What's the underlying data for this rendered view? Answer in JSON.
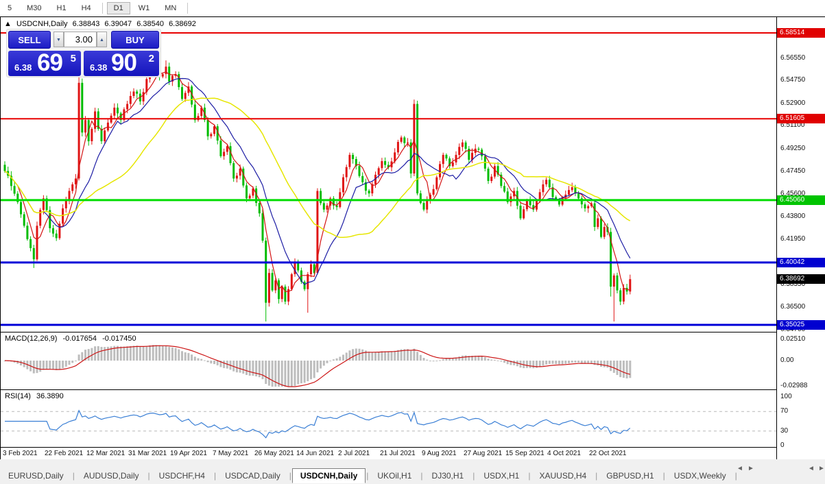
{
  "toolbar": {
    "items": [
      {
        "label": "5",
        "active": false
      },
      {
        "label": "M30",
        "active": false
      },
      {
        "label": "H1",
        "active": false
      },
      {
        "label": "H4",
        "active": false
      },
      {
        "label": "D1",
        "active": true
      },
      {
        "label": "W1",
        "active": false
      },
      {
        "label": "MN",
        "active": false
      }
    ]
  },
  "chart": {
    "collapse_icon": "▲",
    "symbol": "USDCNH,Daily",
    "open": "6.38843",
    "high": "6.39047",
    "low": "6.38540",
    "close": "6.38692"
  },
  "trade_panel": {
    "sell_label": "SELL",
    "buy_label": "BUY",
    "volume": "3.00",
    "spin_down_icon": "▼",
    "spin_up_icon": "▲",
    "bid": {
      "small": "6.38",
      "big": "69",
      "sup": "5"
    },
    "ask": {
      "small": "6.38",
      "big": "90",
      "sup": "2"
    }
  },
  "price_axis": {
    "ticks": [
      {
        "text": "6.56550",
        "value": 6.5655
      },
      {
        "text": "6.54750",
        "value": 6.5475
      },
      {
        "text": "6.52900",
        "value": 6.529
      },
      {
        "text": "6.51100",
        "value": 6.511
      },
      {
        "text": "6.49250",
        "value": 6.4925
      },
      {
        "text": "6.47450",
        "value": 6.4745
      },
      {
        "text": "6.45600",
        "value": 6.456
      },
      {
        "text": "6.43800",
        "value": 6.438
      },
      {
        "text": "6.41950",
        "value": 6.4195
      },
      {
        "text": "6.38350",
        "value": 6.3835
      },
      {
        "text": "6.36500",
        "value": 6.365
      },
      {
        "text": "6.34700",
        "value": 6.347
      }
    ],
    "tags": [
      {
        "text": "6.58514",
        "value": 6.58514,
        "bg": "#e00000"
      },
      {
        "text": "6.51605",
        "value": 6.51605,
        "bg": "#e00000"
      },
      {
        "text": "6.45060",
        "value": 6.4506,
        "bg": "#00c400"
      },
      {
        "text": "6.40042",
        "value": 6.40042,
        "bg": "#0000d0"
      },
      {
        "text": "6.38692",
        "value": 6.38692,
        "bg": "#000000"
      },
      {
        "text": "6.35025",
        "value": 6.35025,
        "bg": "#0000d0"
      }
    ]
  },
  "hlines": [
    {
      "value": 6.58514,
      "color": "#e80000",
      "width": 2
    },
    {
      "value": 6.51605,
      "color": "#e80000",
      "width": 2
    },
    {
      "value": 6.4506,
      "color": "#00dc00",
      "width": 3
    },
    {
      "value": 6.40042,
      "color": "#0000d8",
      "width": 3
    },
    {
      "value": 6.35025,
      "color": "#0000d8",
      "width": 3
    }
  ],
  "indicators": {
    "macd": {
      "label": "MACD(12,26,9)",
      "main_value": "-0.017654",
      "signal_value": "-0.017450",
      "ticks": [
        {
          "text": "0.02510",
          "value": 0.0251
        },
        {
          "text": "0.00",
          "value": 0
        },
        {
          "text": "-0.02988",
          "value": -0.02988
        }
      ]
    },
    "rsi": {
      "label": "RSI(14)",
      "value": "36.3890",
      "ticks": [
        {
          "text": "100",
          "value": 100
        },
        {
          "text": "70",
          "value": 70
        },
        {
          "text": "30",
          "value": 30
        },
        {
          "text": "0",
          "value": 0
        }
      ],
      "levels": [
        70,
        30
      ]
    }
  },
  "date_axis": [
    "3 Feb 2021",
    "22 Feb 2021",
    "12 Mar 2021",
    "31 Mar 2021",
    "19 Apr 2021",
    "7 May 2021",
    "26 May 2021",
    "14 Jun 2021",
    "2 Jul 2021",
    "21 Jul 2021",
    "9 Aug 2021",
    "27 Aug 2021",
    "15 Sep 2021",
    "4 Oct 2021",
    "22 Oct 2021"
  ],
  "tabs": {
    "items": [
      {
        "label": "EURUSD,Daily",
        "active": false
      },
      {
        "label": "AUDUSD,Daily",
        "active": false
      },
      {
        "label": "USDCHF,H4",
        "active": false
      },
      {
        "label": "USDCAD,Daily",
        "active": false
      },
      {
        "label": "USDCNH,Daily",
        "active": true
      },
      {
        "label": "UKOil,H1",
        "active": false
      },
      {
        "label": "DJ30,H1",
        "active": false
      },
      {
        "label": "USDX,H1",
        "active": false
      },
      {
        "label": "XAUUSD,H4",
        "active": false
      },
      {
        "label": "GBPUSD,H1",
        "active": false
      },
      {
        "label": "USDX,Weekly",
        "active": false
      }
    ],
    "scroll_left_icon": "◄",
    "scroll_right_icon": "►"
  },
  "colors": {
    "candle_up": "#e01414",
    "candle_down": "#00bc00",
    "ma_fast": "#d41414",
    "ma_mid": "#1c1ca4",
    "ma_slow": "#e6e600",
    "macd_bar": "#bdbdbd",
    "macd_signal": "#cc1414",
    "rsi_line": "#3a7fd5",
    "panel_blue": "#1c1cc4"
  },
  "chart_data": {
    "type": "candlestick",
    "symbol": "USDCNH",
    "timeframe": "Daily",
    "convention": "red-up-green-down",
    "price_axis_range": [
      6.347,
      6.58514
    ],
    "macd_axis_range": [
      -0.02988,
      0.0251
    ],
    "rsi_axis_range": [
      0,
      100
    ],
    "num_days": 195,
    "ma_periods": {
      "red": 5,
      "blue": 13,
      "yellow": 34
    },
    "macd_params": [
      12,
      26,
      9
    ],
    "rsi_period": 14,
    "close_anchors": [
      [
        0,
        6.474
      ],
      [
        2,
        6.462
      ],
      [
        4,
        6.449
      ],
      [
        6,
        6.43
      ],
      [
        8,
        6.412
      ],
      [
        9,
        6.403
      ],
      [
        10,
        6.43
      ],
      [
        12,
        6.452
      ],
      [
        14,
        6.428
      ],
      [
        16,
        6.42
      ],
      [
        18,
        6.444
      ],
      [
        20,
        6.458
      ],
      [
        22,
        6.468
      ],
      [
        23,
        6.545
      ],
      [
        24,
        6.505
      ],
      [
        25,
        6.515
      ],
      [
        26,
        6.498
      ],
      [
        27,
        6.508
      ],
      [
        28,
        6.522
      ],
      [
        29,
        6.508
      ],
      [
        30,
        6.498
      ],
      [
        32,
        6.513
      ],
      [
        34,
        6.525
      ],
      [
        36,
        6.515
      ],
      [
        38,
        6.528
      ],
      [
        40,
        6.538
      ],
      [
        42,
        6.53
      ],
      [
        44,
        6.548
      ],
      [
        46,
        6.556
      ],
      [
        48,
        6.55
      ],
      [
        50,
        6.558
      ],
      [
        51,
        6.546
      ],
      [
        53,
        6.552
      ],
      [
        55,
        6.532
      ],
      [
        57,
        6.542
      ],
      [
        59,
        6.515
      ],
      [
        61,
        6.525
      ],
      [
        63,
        6.502
      ],
      [
        65,
        6.51
      ],
      [
        67,
        6.486
      ],
      [
        69,
        6.494
      ],
      [
        71,
        6.468
      ],
      [
        73,
        6.476
      ],
      [
        75,
        6.452
      ],
      [
        77,
        6.46
      ],
      [
        79,
        6.44
      ],
      [
        80,
        6.418
      ],
      [
        81,
        6.368
      ],
      [
        82,
        6.392
      ],
      [
        83,
        6.378
      ],
      [
        84,
        6.386
      ],
      [
        85,
        6.371
      ],
      [
        86,
        6.381
      ],
      [
        87,
        6.369
      ],
      [
        88,
        6.379
      ],
      [
        89,
        6.391
      ],
      [
        90,
        6.401
      ],
      [
        91,
        6.394
      ],
      [
        92,
        6.385
      ],
      [
        93,
        6.379
      ],
      [
        94,
        6.391
      ],
      [
        95,
        6.399
      ],
      [
        96,
        6.392
      ],
      [
        97,
        6.458
      ],
      [
        99,
        6.443
      ],
      [
        101,
        6.452
      ],
      [
        103,
        6.445
      ],
      [
        105,
        6.469
      ],
      [
        107,
        6.487
      ],
      [
        109,
        6.478
      ],
      [
        111,
        6.465
      ],
      [
        113,
        6.456
      ],
      [
        115,
        6.471
      ],
      [
        117,
        6.482
      ],
      [
        119,
        6.477
      ],
      [
        121,
        6.489
      ],
      [
        123,
        6.501
      ],
      [
        125,
        6.497
      ],
      [
        126,
        6.472
      ],
      [
        127,
        6.528
      ],
      [
        128,
        6.456
      ],
      [
        130,
        6.443
      ],
      [
        132,
        6.455
      ],
      [
        134,
        6.469
      ],
      [
        136,
        6.487
      ],
      [
        138,
        6.478
      ],
      [
        140,
        6.487
      ],
      [
        142,
        6.497
      ],
      [
        144,
        6.483
      ],
      [
        146,
        6.492
      ],
      [
        148,
        6.486
      ],
      [
        150,
        6.466
      ],
      [
        152,
        6.478
      ],
      [
        154,
        6.462
      ],
      [
        156,
        6.449
      ],
      [
        158,
        6.458
      ],
      [
        160,
        6.436
      ],
      [
        162,
        6.45
      ],
      [
        164,
        6.443
      ],
      [
        166,
        6.457
      ],
      [
        168,
        6.467
      ],
      [
        170,
        6.453
      ],
      [
        172,
        6.447
      ],
      [
        174,
        6.455
      ],
      [
        176,
        6.461
      ],
      [
        178,
        6.452
      ],
      [
        180,
        6.444
      ],
      [
        182,
        6.448
      ],
      [
        183,
        6.429
      ],
      [
        184,
        6.436
      ],
      [
        185,
        6.421
      ],
      [
        186,
        6.429
      ],
      [
        187,
        6.425
      ],
      [
        188,
        6.381
      ],
      [
        189,
        6.39
      ],
      [
        190,
        6.378
      ],
      [
        191,
        6.369
      ],
      [
        192,
        6.38
      ],
      [
        193,
        6.377
      ],
      [
        194,
        6.387
      ]
    ],
    "wick_overrides": {
      "9": {
        "low": 6.396
      },
      "23": {
        "high": 6.553
      },
      "46": {
        "high": 6.5625
      },
      "50": {
        "high": 6.563
      },
      "81": {
        "low": 6.353
      },
      "94": {
        "low": 6.36
      },
      "127": {
        "high": 6.5315
      },
      "188": {
        "low": 6.373
      },
      "189": {
        "low": 6.353
      }
    }
  }
}
